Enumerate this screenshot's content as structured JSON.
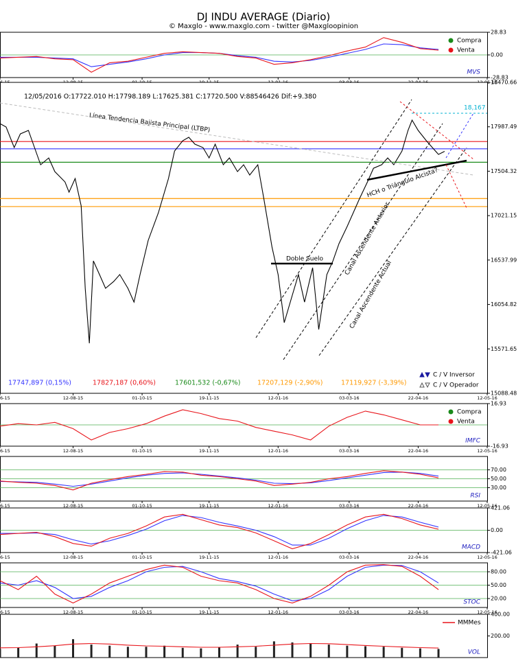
{
  "header": {
    "title": "DJ INDU AVERAGE (Diario)",
    "subtitle": "© Maxglo - www.maxglo.com - twitter @Maxgloopinion"
  },
  "chart_data": [
    {
      "type": "line",
      "label": "MVS",
      "grid": true,
      "x": [
        0,
        9,
        18,
        27,
        36,
        45,
        54,
        63,
        72,
        81,
        90,
        99,
        108,
        117,
        126,
        135,
        144,
        153,
        162,
        171,
        180,
        189,
        198,
        207,
        216
      ],
      "xlim": [
        0,
        240
      ],
      "xticks": [
        {
          "value": 0,
          "label": "6-15"
        },
        {
          "value": 36,
          "label": "12-08-15"
        },
        {
          "value": 70,
          "label": "01-10-15"
        },
        {
          "value": 103,
          "label": "19-11-15"
        },
        {
          "value": 137,
          "label": "12-01-16"
        },
        {
          "value": 172,
          "label": "03-03-16"
        },
        {
          "value": 206,
          "label": "22-04-16"
        },
        {
          "value": 240,
          "label": "12-05-16"
        }
      ],
      "ylim": [
        -28.83,
        28.83
      ],
      "yticks": [
        28.83,
        {
          "value": 0,
          "label": "0.00"
        },
        -28.83
      ],
      "legend": [
        {
          "name": "Compra",
          "color": "#1a8a1a"
        },
        {
          "name": "Venta",
          "color": "#e8141a"
        }
      ],
      "series": [
        {
          "color": "#3333ff",
          "values": [
            -3,
            -3,
            -3,
            -4,
            -5,
            -15,
            -12,
            -9,
            -5,
            0,
            3,
            3,
            2,
            -1,
            -3,
            -8,
            -9,
            -7,
            -3,
            2,
            7,
            14,
            13,
            9,
            7
          ]
        },
        {
          "color": "#e8141a",
          "values": [
            -4,
            -3,
            -2,
            -5,
            -6,
            -22,
            -10,
            -8,
            -3,
            2,
            4,
            3,
            2,
            -2,
            -4,
            -12,
            -10,
            -6,
            -1,
            5,
            10,
            22,
            16,
            8,
            6
          ]
        }
      ]
    },
    {
      "type": "line",
      "grid": false,
      "info": "12/05/2016  O:17722.010  H:17798.189  L:17625.381  C:17720.500  V:88546426  Dif:+9.380",
      "x": [
        0,
        3,
        7,
        10,
        14,
        17,
        20,
        24,
        27,
        32,
        34,
        37,
        40,
        42,
        44,
        46,
        49,
        52,
        56,
        59,
        63,
        66,
        69,
        73,
        78,
        83,
        86,
        90,
        93,
        96,
        100,
        103,
        106,
        110,
        113,
        117,
        120,
        123,
        127,
        130,
        134,
        137,
        140,
        144,
        147,
        150,
        154,
        157,
        161,
        164,
        167,
        171,
        174,
        177,
        181,
        184,
        188,
        191,
        194,
        198,
        201,
        203,
        206,
        210,
        213,
        216,
        219
      ],
      "xlim": [
        0,
        240
      ],
      "xticks": [
        {
          "value": 0,
          "label": "6-15"
        },
        {
          "value": 36,
          "label": "12-08-15"
        },
        {
          "value": 70,
          "label": "01-10-15"
        },
        {
          "value": 103,
          "label": "19-11-15"
        },
        {
          "value": 137,
          "label": "12-01-16"
        },
        {
          "value": 172,
          "label": "03-03-16"
        },
        {
          "value": 206,
          "label": "22-04-16"
        },
        {
          "value": 240,
          "label": "12-05-16"
        }
      ],
      "ylim": [
        15088.48,
        18470.66
      ],
      "yticks": [
        18470.66,
        17987.49,
        17504.32,
        17021.15,
        16537.99,
        16054.82,
        15571.65,
        15088.48
      ],
      "series": [
        {
          "color": "#000000",
          "values": [
            18022,
            17985,
            17761,
            17910,
            17948,
            17761,
            17575,
            17649,
            17500,
            17388,
            17276,
            17425,
            17127,
            16231,
            15633,
            16529,
            16380,
            16231,
            16305,
            16380,
            16231,
            16081,
            16380,
            16753,
            17052,
            17425,
            17724,
            17836,
            17873,
            17799,
            17761,
            17649,
            17799,
            17575,
            17649,
            17500,
            17575,
            17463,
            17575,
            17201,
            16679,
            16380,
            15857,
            16156,
            16380,
            16081,
            16455,
            15783,
            16380,
            16529,
            16716,
            16903,
            17052,
            17201,
            17388,
            17537,
            17575,
            17649,
            17575,
            17724,
            17948,
            18060,
            17948,
            17836,
            17761,
            17687,
            17720.5
          ]
        }
      ],
      "levels": [
        {
          "value": 17747.897,
          "label": "17747,897 (0,15%)",
          "color": "#3333ff"
        },
        {
          "value": 17827.187,
          "label": "17827,187 (0,60%)",
          "color": "#e8141a"
        },
        {
          "value": 17601.532,
          "label": "17601,532 (-0,67%)",
          "color": "#1a8a1a"
        },
        {
          "value": 17207.129,
          "label": "17207,129 (-2,90%)",
          "color": "#ff9900"
        },
        {
          "value": 17119.927,
          "label": "17119,927 (-3,39%)",
          "color": "#ff9900"
        }
      ],
      "annotations": [
        "Línea Tendencia Bajista Principal (LTBP)",
        "Doble Suelo",
        "Canal  Ascendente Anterior",
        "Canal  Ascendente Actual",
        "HCH o Triángulo Alcista?",
        "18,167"
      ],
      "legend": [
        {
          "name": "C / V Inversor",
          "color": "#1a1aa0"
        },
        {
          "name": "C / V Operador",
          "color": "#555555"
        }
      ]
    },
    {
      "type": "line",
      "label": "IMFC",
      "grid": false,
      "zero_line": true,
      "x": [
        0,
        9,
        18,
        27,
        36,
        45,
        54,
        63,
        72,
        81,
        90,
        99,
        108,
        117,
        126,
        135,
        144,
        153,
        162,
        171,
        180,
        189,
        198,
        207,
        216
      ],
      "xlim": [
        0,
        240
      ],
      "xticks": [
        {
          "value": 0,
          "label": "6-15"
        },
        {
          "value": 36,
          "label": "12-08-15"
        },
        {
          "value": 70,
          "label": "01-10-15"
        },
        {
          "value": 103,
          "label": "19-11-15"
        },
        {
          "value": 137,
          "label": "12-01-16"
        },
        {
          "value": 172,
          "label": "03-03-16"
        },
        {
          "value": 206,
          "label": "22-04-16"
        },
        {
          "value": 240,
          "label": "12-05-16"
        }
      ],
      "ylim": [
        -16.93,
        16.93
      ],
      "yticks": [
        16.93,
        -16.93
      ],
      "legend": [
        {
          "name": "Compra",
          "color": "#1a8a1a"
        },
        {
          "name": "Venta",
          "color": "#e8141a"
        }
      ],
      "series": [
        {
          "color": "#e8141a",
          "values": [
            -1,
            1,
            0,
            2,
            -3,
            -12,
            -6,
            -3,
            1,
            7,
            12,
            9,
            5,
            3,
            -2,
            -5,
            -8,
            -12,
            -1,
            6,
            11,
            8,
            4,
            0,
            0
          ]
        }
      ]
    },
    {
      "type": "line",
      "label": "RSI",
      "grid": true,
      "x": [
        0,
        9,
        18,
        27,
        36,
        45,
        54,
        63,
        72,
        81,
        90,
        99,
        108,
        117,
        126,
        135,
        144,
        153,
        162,
        171,
        180,
        189,
        198,
        207,
        216
      ],
      "xlim": [
        0,
        240
      ],
      "xticks": [
        {
          "value": 0,
          "label": "6-15"
        },
        {
          "value": 36,
          "label": "12-08-15"
        },
        {
          "value": 70,
          "label": "01-10-15"
        },
        {
          "value": 103,
          "label": "19-11-15"
        },
        {
          "value": 137,
          "label": "12-01-16"
        },
        {
          "value": 172,
          "label": "03-03-16"
        },
        {
          "value": 206,
          "label": "22-04-16"
        },
        {
          "value": 240,
          "label": "12-05-16"
        }
      ],
      "ylim": [
        0,
        100
      ],
      "yticks": [
        {
          "value": 70,
          "label": "70.00"
        },
        {
          "value": 50,
          "label": "50.00"
        },
        {
          "value": 30,
          "label": "30.00"
        }
      ],
      "series": [
        {
          "color": "#3333ff",
          "values": [
            44,
            43,
            42,
            38,
            33,
            38,
            45,
            52,
            58,
            62,
            63,
            60,
            56,
            52,
            47,
            40,
            39,
            41,
            46,
            52,
            58,
            64,
            65,
            62,
            56
          ]
        },
        {
          "color": "#e8141a",
          "values": [
            45,
            42,
            40,
            35,
            25,
            40,
            48,
            55,
            60,
            66,
            65,
            58,
            55,
            50,
            45,
            35,
            38,
            42,
            50,
            55,
            62,
            68,
            65,
            60,
            52
          ]
        }
      ]
    },
    {
      "type": "line",
      "label": "MACD",
      "grid": true,
      "x": [
        0,
        9,
        18,
        27,
        36,
        45,
        54,
        63,
        72,
        81,
        90,
        99,
        108,
        117,
        126,
        135,
        144,
        153,
        162,
        171,
        180,
        189,
        198,
        207,
        216
      ],
      "xlim": [
        0,
        240
      ],
      "xticks": [
        {
          "value": 0,
          "label": "6-15"
        },
        {
          "value": 36,
          "label": "12-08-15"
        },
        {
          "value": 70,
          "label": "01-10-15"
        },
        {
          "value": 103,
          "label": "19-11-15"
        },
        {
          "value": 137,
          "label": "12-01-16"
        },
        {
          "value": 172,
          "label": "03-03-16"
        },
        {
          "value": 206,
          "label": "22-04-16"
        },
        {
          "value": 240,
          "label": "12-05-16"
        }
      ],
      "ylim": [
        -421.06,
        421.06
      ],
      "yticks": [
        421.06,
        {
          "value": 0,
          "label": "0.00"
        },
        -421.06
      ],
      "series": [
        {
          "color": "#3333ff",
          "values": [
            -60,
            -60,
            -50,
            -80,
            -180,
            -260,
            -200,
            -100,
            20,
            180,
            280,
            240,
            150,
            80,
            0,
            -120,
            -280,
            -280,
            -150,
            30,
            180,
            280,
            250,
            150,
            60
          ]
        },
        {
          "color": "#e8141a",
          "values": [
            -80,
            -60,
            -40,
            -120,
            -250,
            -300,
            -150,
            -60,
            80,
            250,
            300,
            200,
            100,
            50,
            -50,
            -200,
            -350,
            -250,
            -80,
            100,
            250,
            300,
            220,
            100,
            20
          ]
        }
      ]
    },
    {
      "type": "line",
      "label": "STOC",
      "grid": true,
      "x": [
        0,
        9,
        18,
        27,
        36,
        45,
        54,
        63,
        72,
        81,
        90,
        99,
        108,
        117,
        126,
        135,
        144,
        153,
        162,
        171,
        180,
        189,
        198,
        207,
        216
      ],
      "xlim": [
        0,
        240
      ],
      "xticks": [
        {
          "value": 0,
          "label": "6-15"
        },
        {
          "value": 36,
          "label": "12-08-15"
        },
        {
          "value": 70,
          "label": "01-10-15"
        },
        {
          "value": 103,
          "label": "19-11-15"
        },
        {
          "value": 137,
          "label": "12-01-16"
        },
        {
          "value": 172,
          "label": "03-03-16"
        },
        {
          "value": 206,
          "label": "22-04-16"
        },
        {
          "value": 240,
          "label": "12-05-16"
        }
      ],
      "ylim": [
        0,
        100
      ],
      "yticks": [
        {
          "value": 80,
          "label": "80.00"
        },
        {
          "value": 50,
          "label": "50.00"
        },
        {
          "value": 20,
          "label": "20.00"
        }
      ],
      "series": [
        {
          "color": "#3333ff",
          "values": [
            55,
            50,
            60,
            45,
            20,
            25,
            45,
            60,
            80,
            90,
            92,
            80,
            65,
            58,
            48,
            30,
            15,
            20,
            40,
            70,
            90,
            95,
            94,
            80,
            55
          ]
        },
        {
          "color": "#e8141a",
          "values": [
            60,
            40,
            70,
            30,
            10,
            30,
            55,
            70,
            85,
            95,
            90,
            70,
            60,
            55,
            40,
            20,
            10,
            25,
            50,
            80,
            95,
            96,
            92,
            70,
            40
          ]
        }
      ]
    },
    {
      "type": "bar",
      "label": "VOL",
      "grid": false,
      "color": "#222222",
      "x": [
        0,
        9,
        18,
        27,
        36,
        45,
        54,
        63,
        72,
        81,
        90,
        99,
        108,
        117,
        126,
        135,
        144,
        153,
        162,
        171,
        180,
        189,
        198,
        207,
        216
      ],
      "xlim": [
        0,
        240
      ],
      "ylim": [
        0,
        400
      ],
      "yticks": [
        {
          "value": 400,
          "label": "400.00"
        },
        {
          "value": 200,
          "label": "200.00"
        }
      ],
      "values": [
        80,
        90,
        130,
        110,
        170,
        120,
        110,
        100,
        100,
        110,
        90,
        85,
        95,
        120,
        100,
        150,
        140,
        130,
        120,
        110,
        105,
        100,
        90,
        85,
        80
      ],
      "series": [
        {
          "name": "MMMes",
          "color": "#e8141a",
          "values": [
            90,
            92,
            100,
            110,
            125,
            130,
            125,
            115,
            108,
            105,
            100,
            95,
            95,
            100,
            105,
            115,
            125,
            130,
            128,
            120,
            112,
            105,
            98,
            92,
            88
          ]
        }
      ]
    }
  ]
}
